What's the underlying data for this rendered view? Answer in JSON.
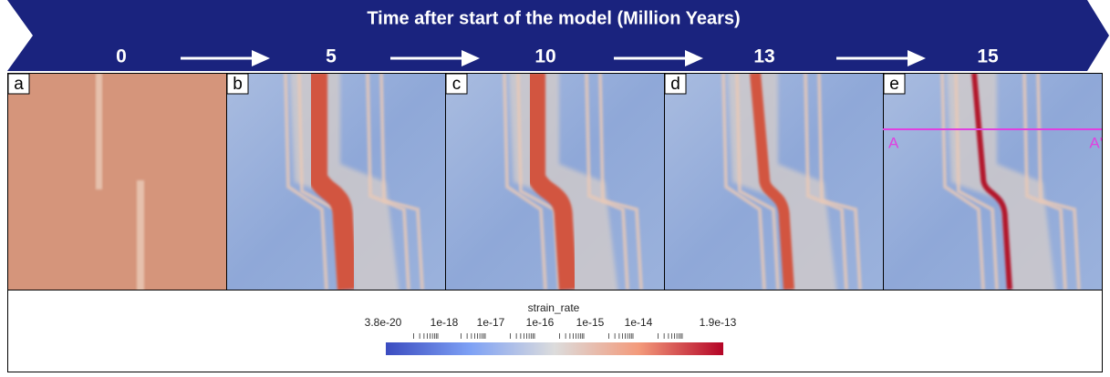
{
  "header": {
    "title": "Time after start of the model (Million Years)",
    "times": [
      "0",
      "5",
      "10",
      "13",
      "15"
    ]
  },
  "panels": [
    {
      "label": "a"
    },
    {
      "label": "b"
    },
    {
      "label": "c"
    },
    {
      "label": "d"
    },
    {
      "label": "e"
    }
  ],
  "section": {
    "start": "A",
    "end": "A'"
  },
  "colorbar": {
    "title": "strain_rate",
    "tick_labels": [
      "3.8e-20",
      "1e-18",
      "1e-17",
      "1e-16",
      "1e-15",
      "1e-14",
      "1.9e-13"
    ]
  }
}
